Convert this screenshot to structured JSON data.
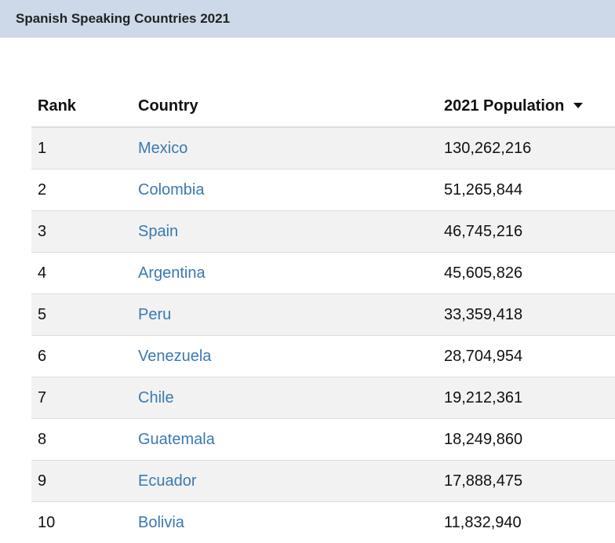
{
  "header": {
    "title": "Spanish Speaking Countries 2021"
  },
  "table": {
    "columns": {
      "rank": "Rank",
      "country": "Country",
      "population": "2021 Population"
    },
    "sort_icon": "caret-down-icon",
    "rows": [
      {
        "rank": "1",
        "country": "Mexico",
        "population": "130,262,216"
      },
      {
        "rank": "2",
        "country": "Colombia",
        "population": "51,265,844"
      },
      {
        "rank": "3",
        "country": "Spain",
        "population": "46,745,216"
      },
      {
        "rank": "4",
        "country": "Argentina",
        "population": "45,605,826"
      },
      {
        "rank": "5",
        "country": "Peru",
        "population": "33,359,418"
      },
      {
        "rank": "6",
        "country": "Venezuela",
        "population": "28,704,954"
      },
      {
        "rank": "7",
        "country": "Chile",
        "population": "19,212,361"
      },
      {
        "rank": "8",
        "country": "Guatemala",
        "population": "18,249,860"
      },
      {
        "rank": "9",
        "country": "Ecuador",
        "population": "17,888,475"
      },
      {
        "rank": "10",
        "country": "Bolivia",
        "population": "11,832,940"
      }
    ]
  },
  "colors": {
    "title_bar": "#cdd9e8",
    "link": "#3a79b3",
    "row_stripe": "#f2f2f2"
  }
}
